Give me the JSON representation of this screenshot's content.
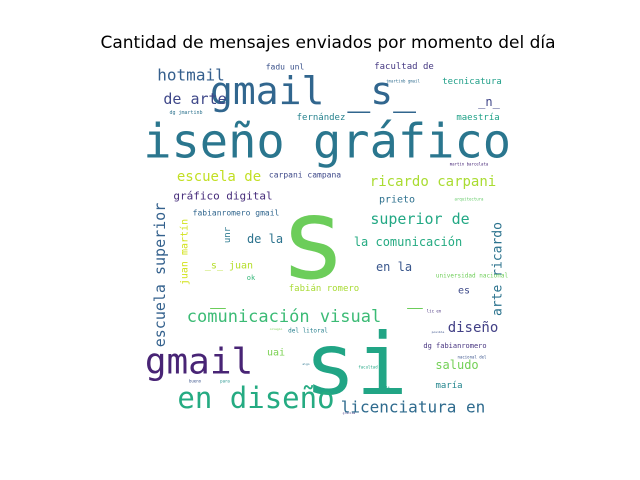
{
  "chart_data": {
    "type": "wordcloud",
    "title": "Cantidad de mensajes enviados por momento del día",
    "words": [
      {
        "text": "si",
        "weight": 100,
        "color": "#21a585"
      },
      {
        "text": "s",
        "weight": 95,
        "color": "#6ccd5a"
      },
      {
        "text": "diseño gráfico",
        "weight": 62,
        "color": "#2a768e"
      },
      {
        "text": "_",
        "weight": 55,
        "color": "#6ccd5a"
      },
      {
        "text": "_",
        "weight": 55,
        "color": "#6ccd5a"
      },
      {
        "text": "gmail _s_",
        "weight": 48,
        "color": "#31668e"
      },
      {
        "text": "gmail",
        "weight": 42,
        "color": "#482475"
      },
      {
        "text": "en diseño",
        "weight": 38,
        "color": "#25ab82"
      },
      {
        "text": "comunicación visual",
        "weight": 24,
        "color": "#3bbb75"
      },
      {
        "text": "licenciatura en",
        "weight": 22,
        "color": "#2f6b8e"
      },
      {
        "text": "hotmail",
        "weight": 21,
        "color": "#355f8d"
      },
      {
        "text": "escuela superior",
        "weight": 20,
        "color": "#34618d"
      },
      {
        "text": "escuela de",
        "weight": 19,
        "color": "#c2df23"
      },
      {
        "text": "superior de",
        "weight": 19,
        "color": "#22a884"
      },
      {
        "text": "ricardo carpani",
        "weight": 18,
        "color": "#aadc32"
      },
      {
        "text": "de arte",
        "weight": 18,
        "color": "#3f4889"
      },
      {
        "text": "arte ricardo",
        "weight": 16,
        "color": "#2c738e"
      },
      {
        "text": "diseño",
        "weight": 15,
        "color": "#424086"
      },
      {
        "text": "la comunicación",
        "weight": 14,
        "color": "#25ab82"
      },
      {
        "text": "saludo",
        "weight": 13,
        "color": "#73d056"
      },
      {
        "text": "en la",
        "weight": 13,
        "color": "#39568c"
      },
      {
        "text": "de la",
        "weight": 13,
        "color": "#2c738e"
      },
      {
        "text": "gráfico digital",
        "weight": 13,
        "color": "#472d7b"
      },
      {
        "text": "_n_",
        "weight": 12,
        "color": "#404688"
      },
      {
        "text": "_s_ juan",
        "weight": 11,
        "color": "#b5de2b"
      },
      {
        "text": "es",
        "weight": 10,
        "color": "#3e4a89"
      },
      {
        "text": "uai",
        "weight": 10,
        "color": "#7ad151"
      },
      {
        "text": "prieto",
        "weight": 10,
        "color": "#2d708e"
      },
      {
        "text": "juan martín",
        "weight": 10,
        "color": "#d2e21b"
      },
      {
        "text": "maría",
        "weight": 9,
        "color": "#24868e"
      },
      {
        "text": "unr",
        "weight": 9,
        "color": "#2a788e"
      },
      {
        "text": "fabián romero",
        "weight": 9,
        "color": "#a8db34"
      },
      {
        "text": "fernández",
        "weight": 9,
        "color": "#26828e"
      },
      {
        "text": "maestría",
        "weight": 8,
        "color": "#1fa187"
      },
      {
        "text": "facultad de",
        "weight": 8,
        "color": "#453882"
      },
      {
        "text": "tecnicatura",
        "weight": 8,
        "color": "#1f9f88"
      },
      {
        "text": "fadu unl",
        "weight": 7,
        "color": "#3b528b"
      },
      {
        "text": "carpani campana",
        "weight": 7,
        "color": "#3e4989"
      },
      {
        "text": "fabianromero gmail",
        "weight": 7,
        "color": "#31668e"
      },
      {
        "text": "dg fabianromero",
        "weight": 7,
        "color": "#46337f"
      },
      {
        "text": "ok",
        "weight": 7,
        "color": "#35b779"
      },
      {
        "text": "del litoral",
        "weight": 6,
        "color": "#277f8e"
      },
      {
        "text": "dg jmartinb",
        "weight": 6,
        "color": "#2c728e"
      },
      {
        "text": "universidad nacional",
        "weight": 5,
        "color": "#6ece58"
      },
      {
        "text": "lic en",
        "weight": 5,
        "color": "#46307e"
      },
      {
        "text": "nacional del",
        "weight": 4,
        "color": "#3a548c"
      },
      {
        "text": "arquitectura",
        "weight": 4,
        "color": "#5ec962"
      },
      {
        "text": "martin barcelata",
        "weight": 4,
        "color": "#482878"
      },
      {
        "text": "jmartinb gmail",
        "weight": 4,
        "color": "#2f6c8e"
      },
      {
        "text": "facultad",
        "weight": 4,
        "color": "#22a785"
      },
      {
        "text": "para",
        "weight": 4,
        "color": "#20938c"
      },
      {
        "text": "bueno",
        "weight": 4,
        "color": "#3a538b"
      },
      {
        "text": "colegio",
        "weight": 4,
        "color": "#7ad151"
      },
      {
        "text": "algo",
        "weight": 3,
        "color": "#2b758e"
      },
      {
        "text": "posible",
        "weight": 3,
        "color": "#3b528b"
      },
      {
        "text": "vale",
        "weight": 3,
        "color": "#20a486"
      },
      {
        "text": "gracias",
        "weight": 3,
        "color": "#443a83"
      }
    ]
  }
}
